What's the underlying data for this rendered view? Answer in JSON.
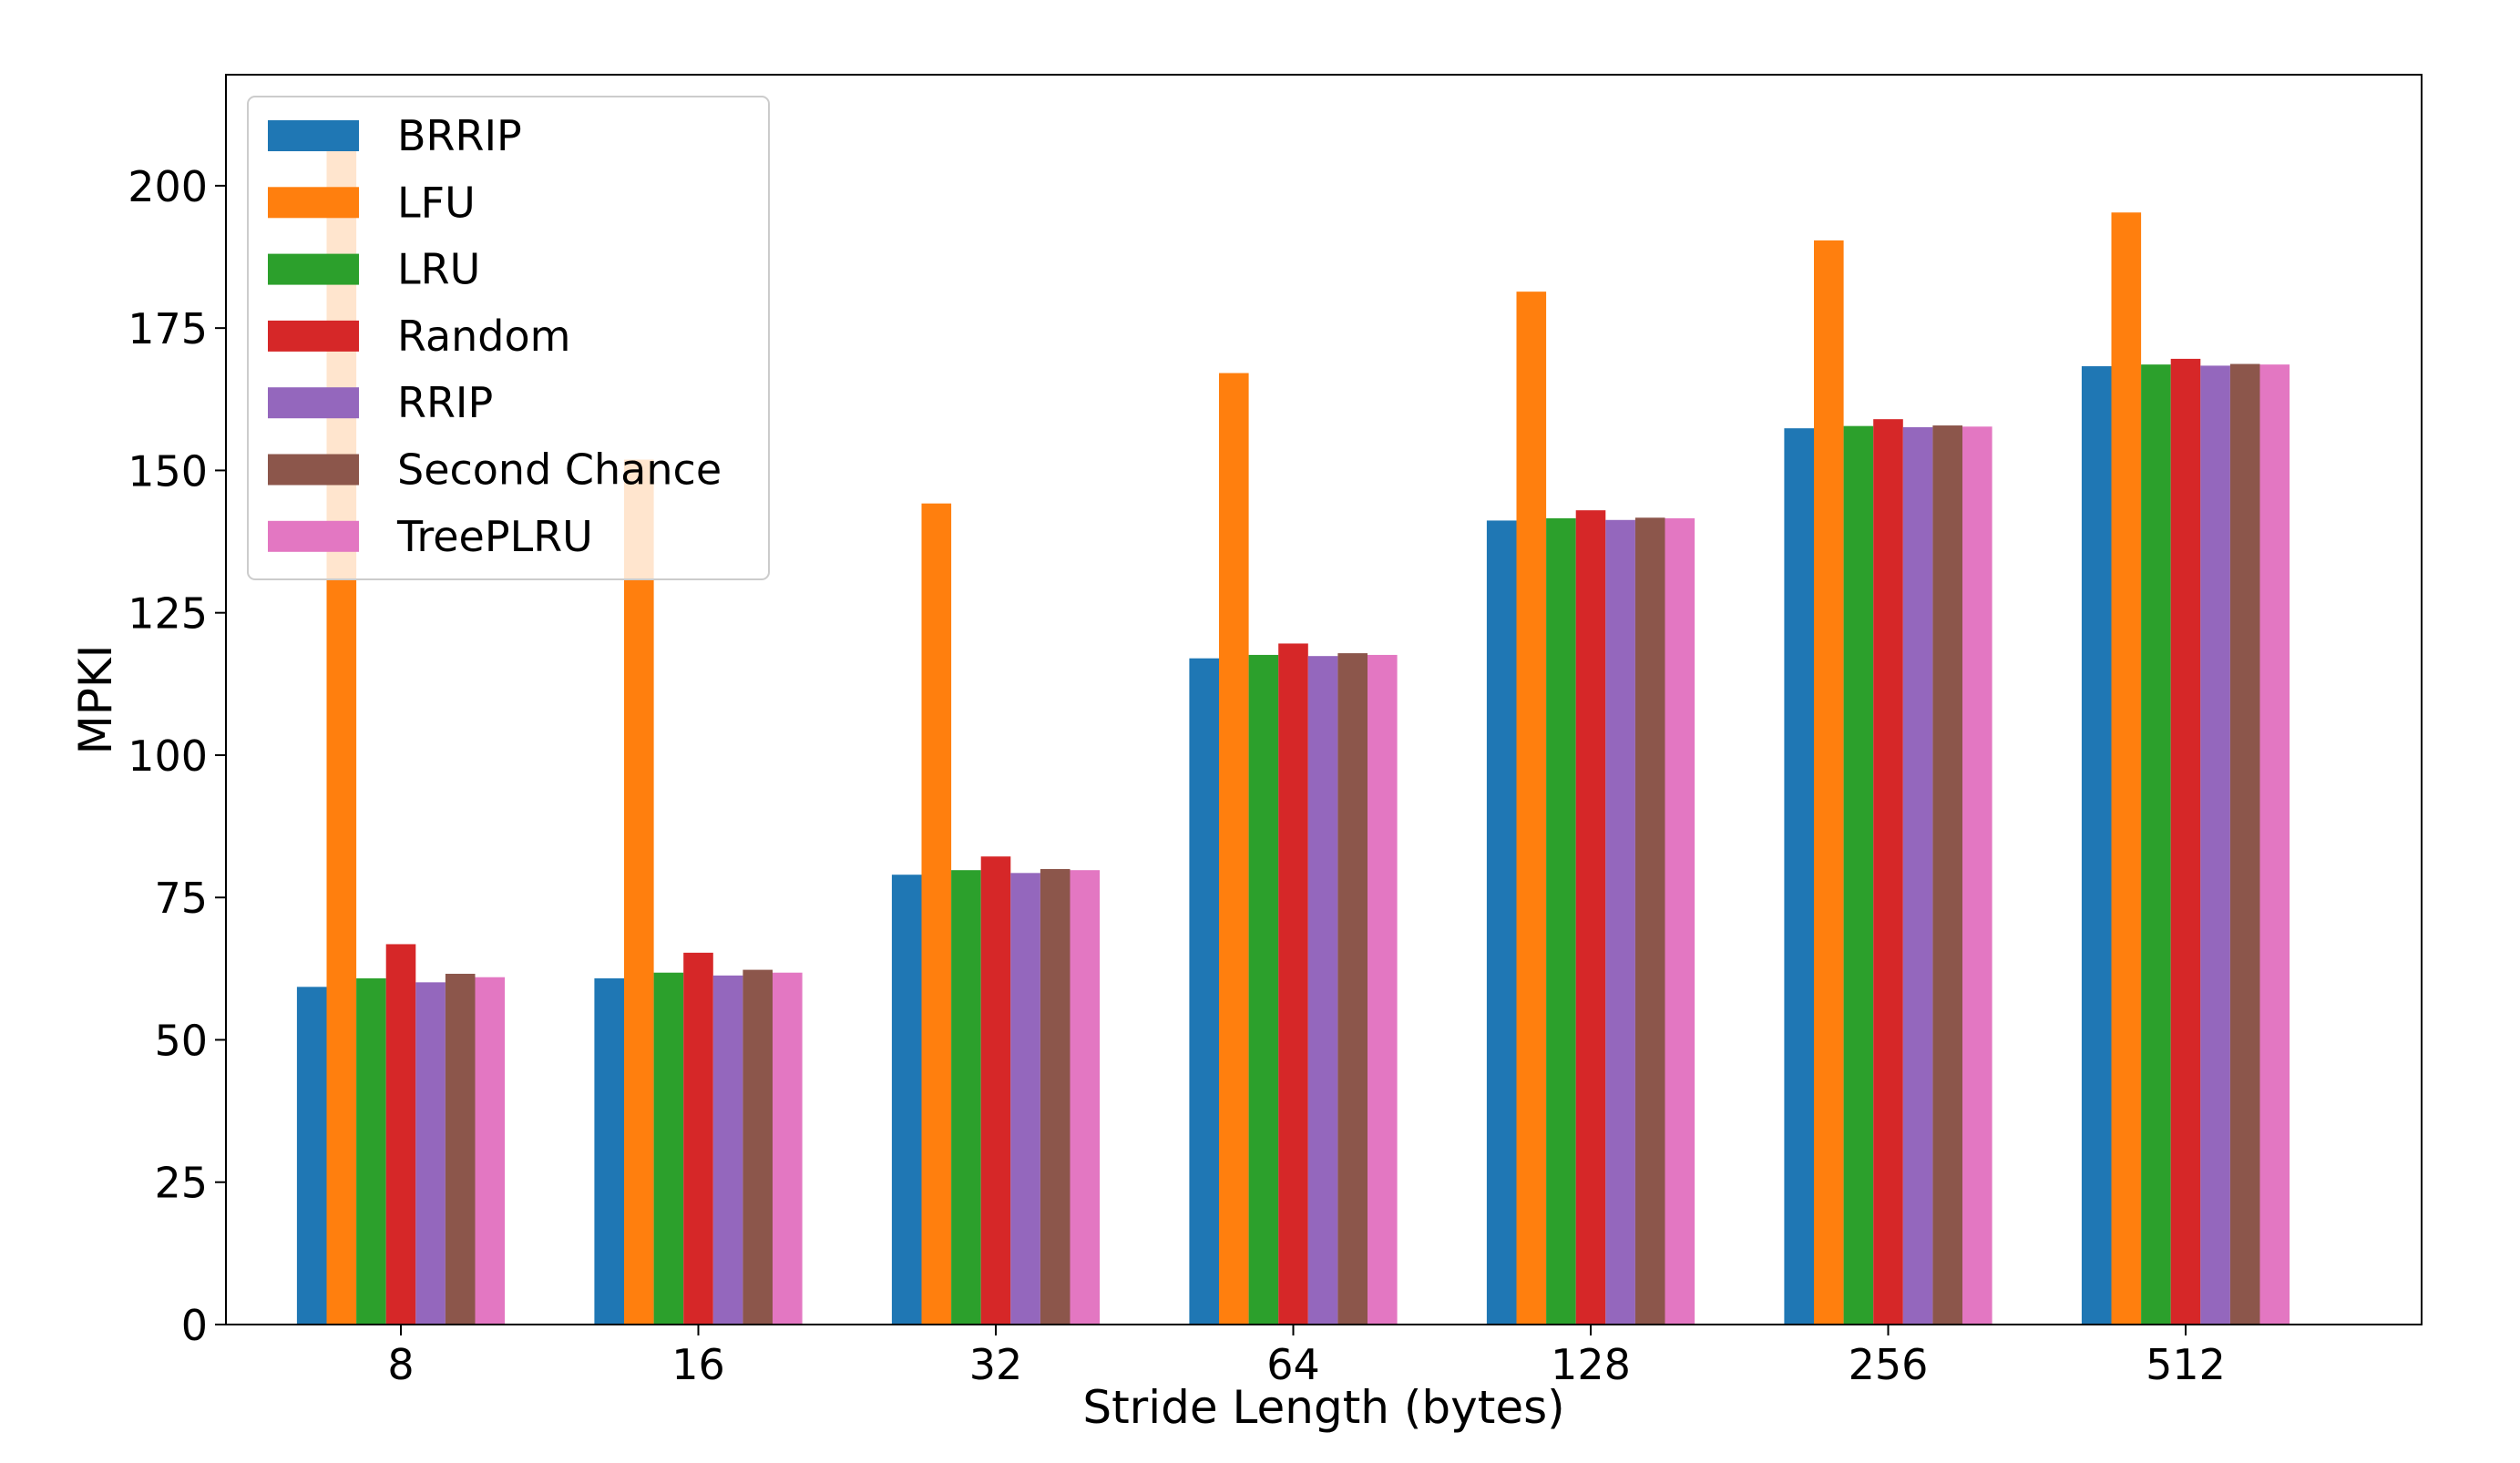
{
  "chart_data": {
    "type": "bar",
    "title": "",
    "xlabel": "Stride Length (bytes)",
    "ylabel": "MPKI",
    "categories": [
      "8",
      "16",
      "32",
      "64",
      "128",
      "256",
      "512"
    ],
    "ylim": [
      0,
      219.5
    ],
    "yticks": [
      0,
      25,
      50,
      75,
      100,
      125,
      150,
      175,
      200
    ],
    "grid": false,
    "legend_position": "top-left",
    "series": [
      {
        "name": "BRRIP",
        "color": "#1f77b4",
        "values": [
          59.3,
          60.8,
          79.0,
          117.0,
          141.2,
          157.4,
          168.3
        ]
      },
      {
        "name": "LFU",
        "color": "#ff7f0e",
        "values": [
          208.4,
          151.9,
          144.2,
          167.1,
          181.4,
          190.4,
          195.3
        ]
      },
      {
        "name": "LRU",
        "color": "#2ca02c",
        "values": [
          60.8,
          61.8,
          79.8,
          117.6,
          141.6,
          157.8,
          168.6
        ]
      },
      {
        "name": "Random",
        "color": "#d62728",
        "values": [
          66.8,
          65.3,
          82.2,
          119.6,
          143.0,
          159.0,
          169.6
        ]
      },
      {
        "name": "RRIP",
        "color": "#9467bd",
        "values": [
          60.1,
          61.3,
          79.3,
          117.4,
          141.3,
          157.6,
          168.4
        ]
      },
      {
        "name": "Second Chance",
        "color": "#8c564b",
        "values": [
          61.6,
          62.3,
          80.0,
          117.9,
          141.7,
          157.9,
          168.7
        ]
      },
      {
        "name": "TreePLRU",
        "color": "#e377c2",
        "values": [
          61.0,
          61.8,
          79.8,
          117.6,
          141.6,
          157.7,
          168.6
        ]
      }
    ]
  }
}
